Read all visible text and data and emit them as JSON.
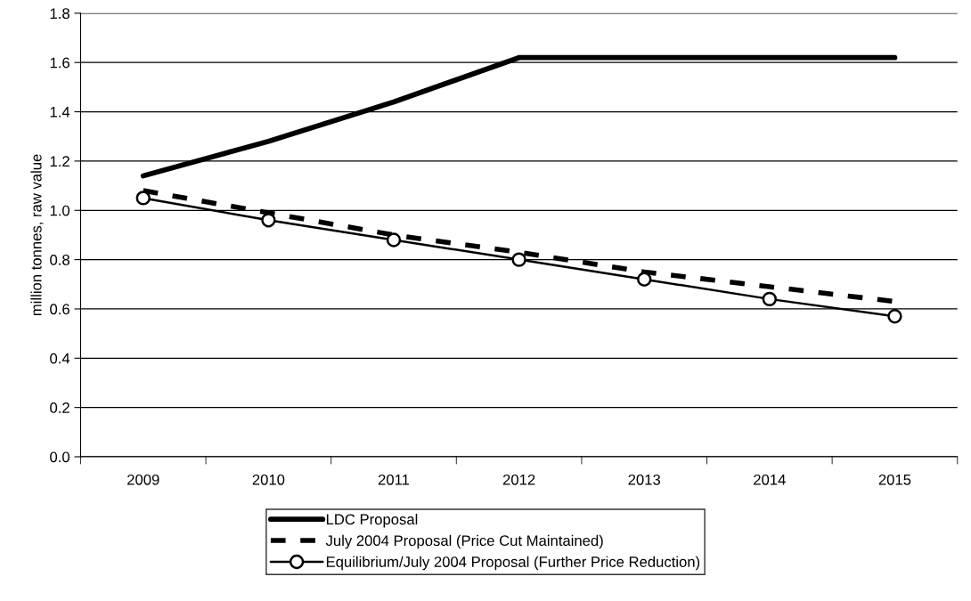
{
  "chart_data": {
    "type": "line",
    "ylabel": "million tonnes, raw value",
    "categories": [
      "2009",
      "2010",
      "2011",
      "2012",
      "2013",
      "2014",
      "2015"
    ],
    "series": [
      {
        "name": "LDC Proposal",
        "color": "#000000",
        "line_style": "solid",
        "marker": "none",
        "values": [
          1.14,
          1.28,
          1.44,
          1.62,
          1.62,
          1.62,
          1.62
        ]
      },
      {
        "name": "July 2004 Proposal (Price Cut Maintained)",
        "color": "#000000",
        "line_style": "dashed",
        "marker": "none",
        "values": [
          1.08,
          0.99,
          0.9,
          0.83,
          0.75,
          0.69,
          0.63
        ]
      },
      {
        "name": "Equilibrium/July 2004 Proposal (Further Price Reduction)",
        "color": "#000000",
        "line_style": "solid",
        "marker": "circle",
        "values": [
          1.05,
          0.96,
          0.88,
          0.8,
          0.72,
          0.64,
          0.57
        ]
      }
    ],
    "ylim": [
      0,
      1.8
    ],
    "yticks": [
      {
        "value": 0,
        "label": "0.0"
      },
      {
        "value": 0.2,
        "label": "0.2"
      },
      {
        "value": 0.4,
        "label": "0.4"
      },
      {
        "value": 0.6,
        "label": "0.6"
      },
      {
        "value": 0.8,
        "label": "0.8"
      },
      {
        "value": 1.0,
        "label": "1.0"
      },
      {
        "value": 1.2,
        "label": "1.2"
      },
      {
        "value": 1.4,
        "label": "1.4"
      },
      {
        "value": 1.6,
        "label": "1.6"
      },
      {
        "value": 1.8,
        "label": "1.8"
      }
    ],
    "grid": "y",
    "legend": "bottom"
  }
}
